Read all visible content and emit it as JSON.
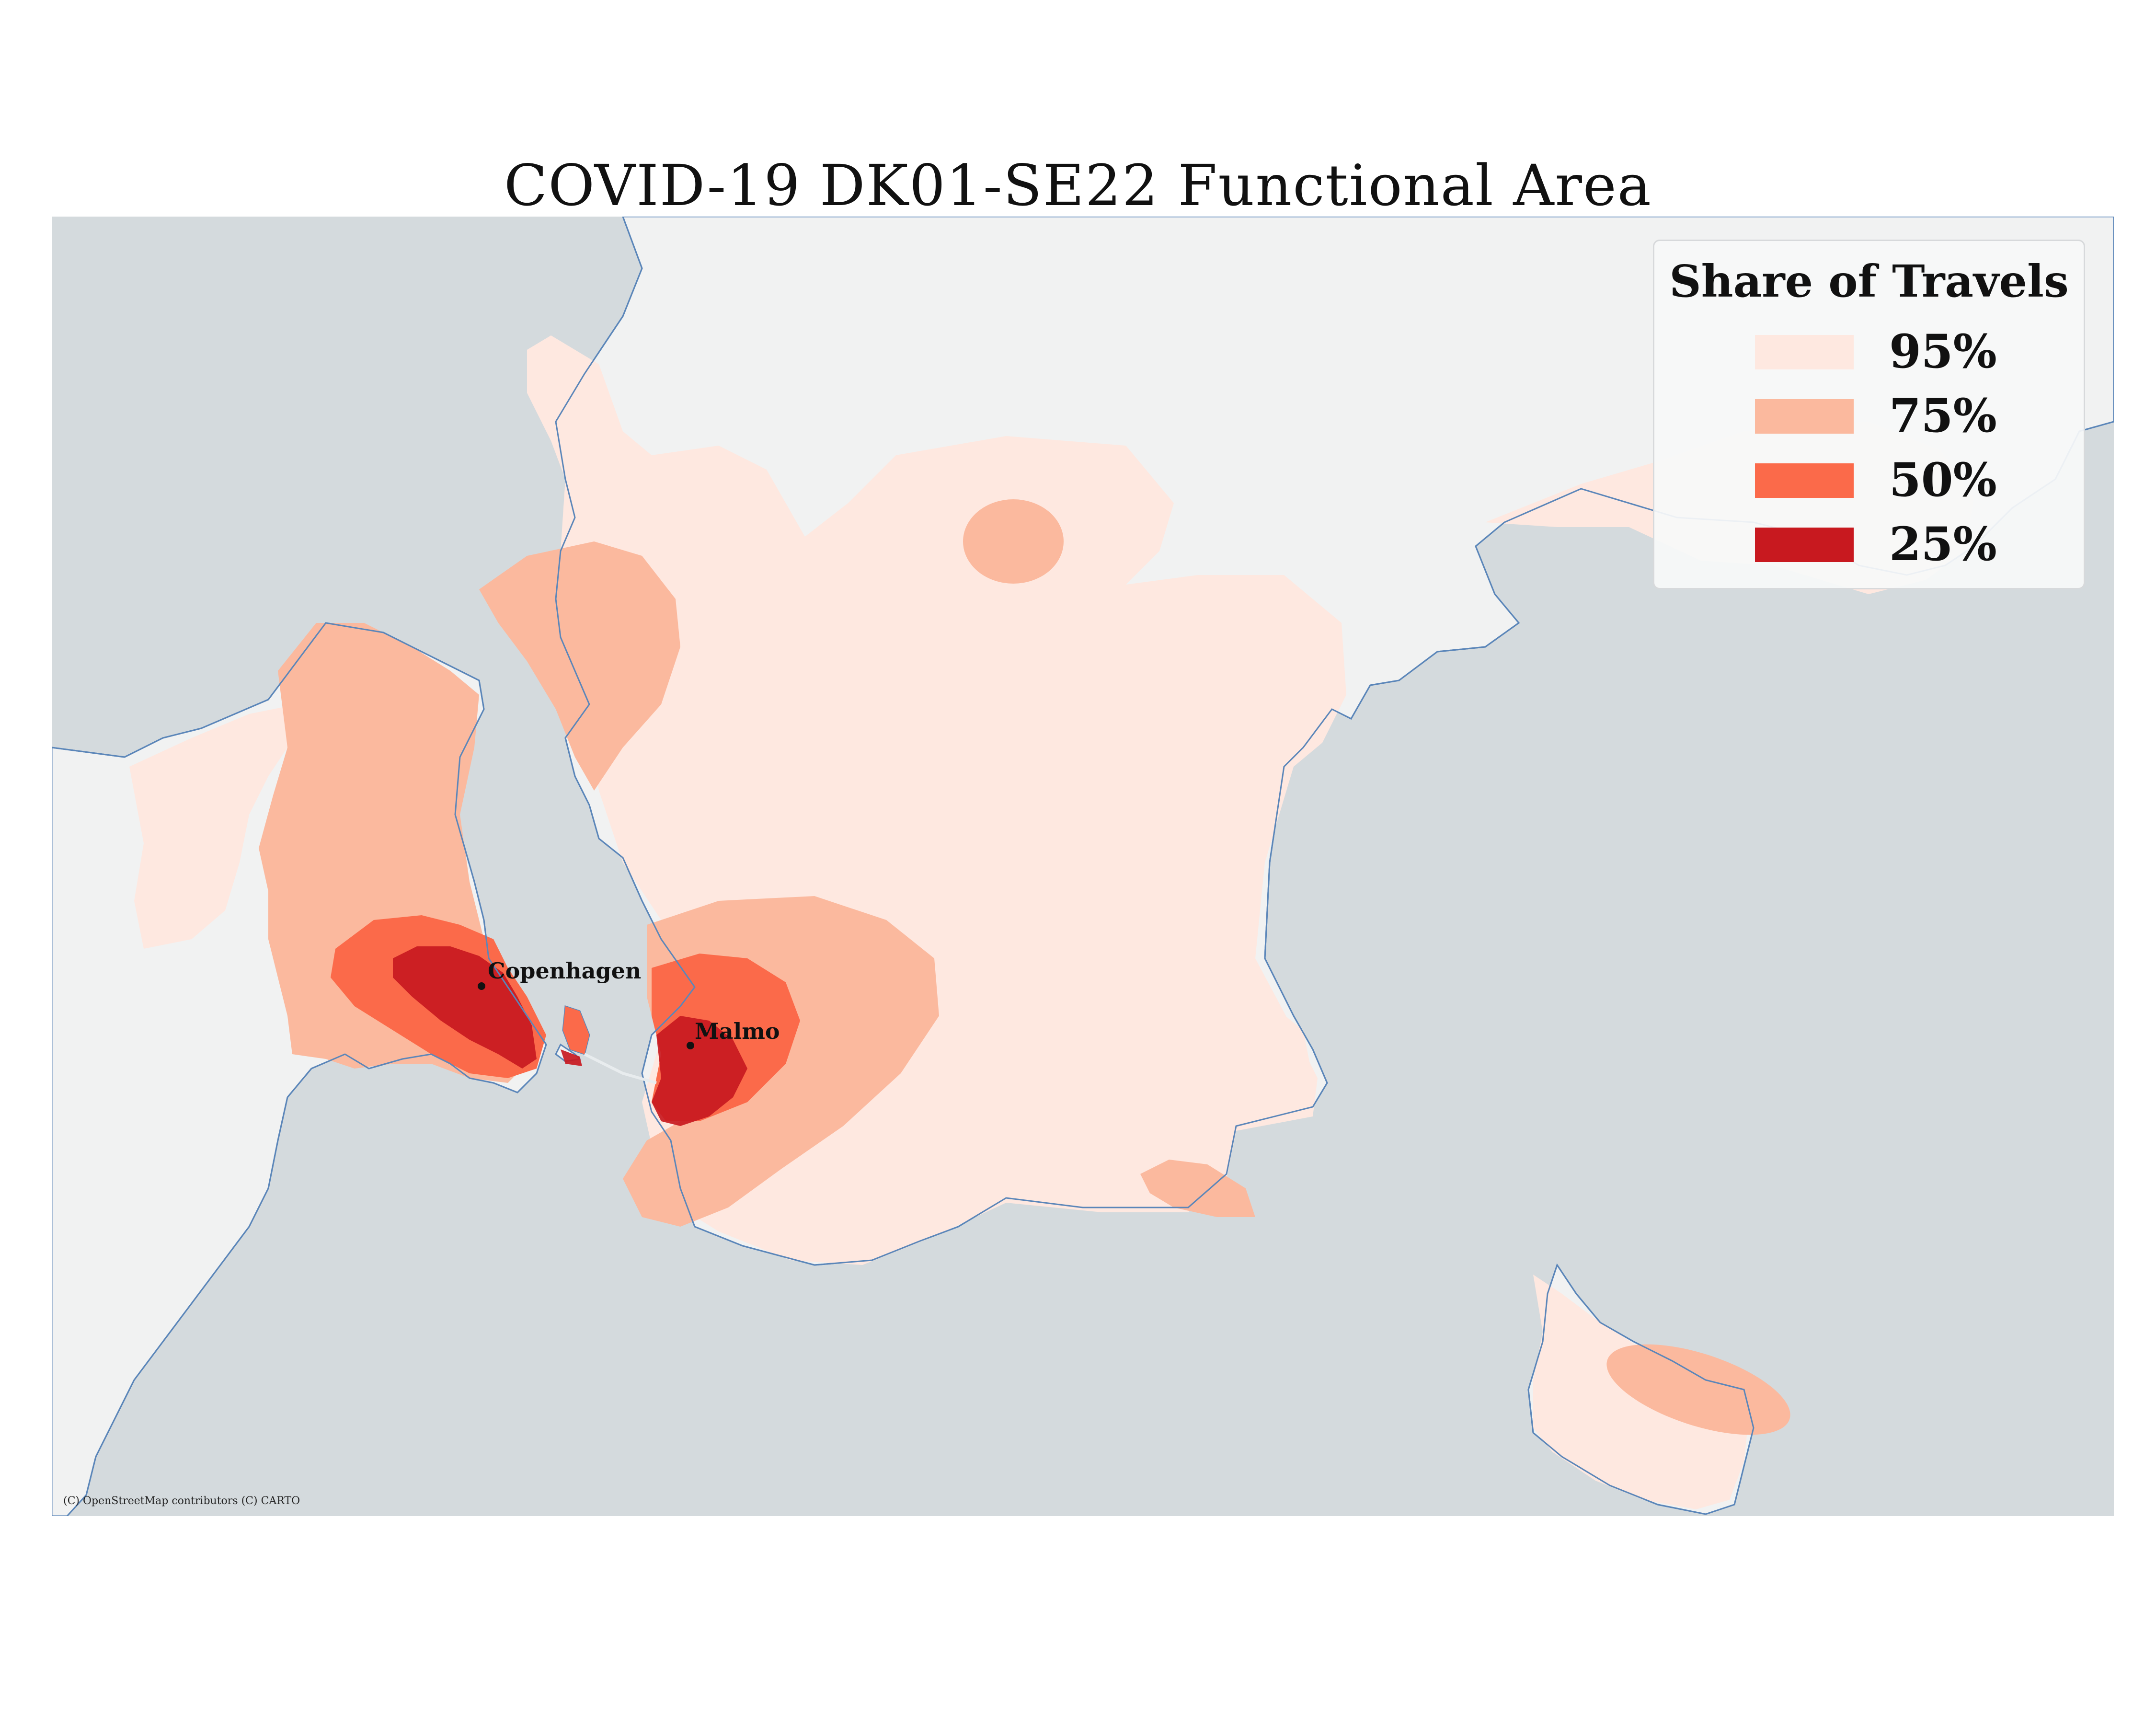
{
  "title": "COVID-19 DK01-SE22 Functional Area",
  "attribution": "(C) OpenStreetMap contributors (C) CARTO",
  "colors": {
    "sea": "#d4dadd",
    "land": "#f1f2f2",
    "coastline": "#5b86b9",
    "share_95": "#fee8e0",
    "share_75": "#fbb99e",
    "share_50": "#fb6a4a",
    "share_25": "#c8191f"
  },
  "legend": {
    "title": "Share of Travels",
    "items": [
      {
        "label": "95%",
        "color": "#fee8e0"
      },
      {
        "label": "75%",
        "color": "#fbb99e"
      },
      {
        "label": "50%",
        "color": "#fb6a4a"
      },
      {
        "label": "25%",
        "color": "#c8191f"
      }
    ]
  },
  "cities": [
    {
      "name": "Copenhagen"
    },
    {
      "name": "Malmo"
    }
  ]
}
